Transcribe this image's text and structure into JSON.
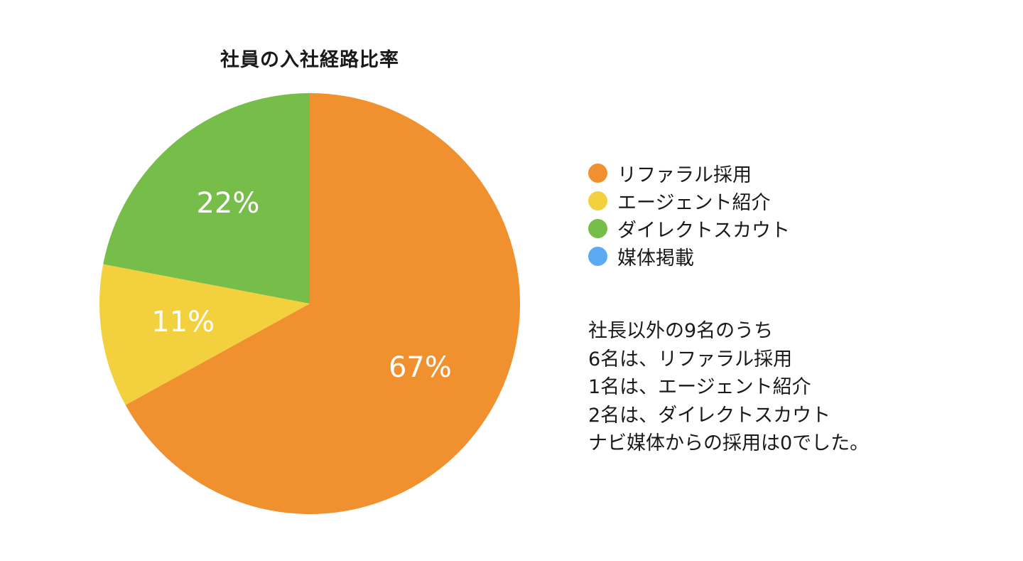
{
  "chart_data": {
    "type": "pie",
    "title": "社員の入社経路比率",
    "categories": [
      "リファラル採用",
      "エージェント紹介",
      "ダイレクトスカウト",
      "媒体掲載"
    ],
    "values": [
      67,
      11,
      22,
      0
    ],
    "data_labels": [
      "67%",
      "11%",
      "22%",
      ""
    ],
    "colors": [
      "#F0902F",
      "#F3D03E",
      "#76BD4A",
      "#5AAAF5"
    ],
    "legend_position": "right"
  },
  "note": {
    "lines": [
      "社長以外の9名のうち",
      "6名は、リファラル採用",
      "1名は、エージェント紹介",
      "2名は、ダイレクトスカウト",
      "ナビ媒体からの採用は0でした。"
    ]
  }
}
